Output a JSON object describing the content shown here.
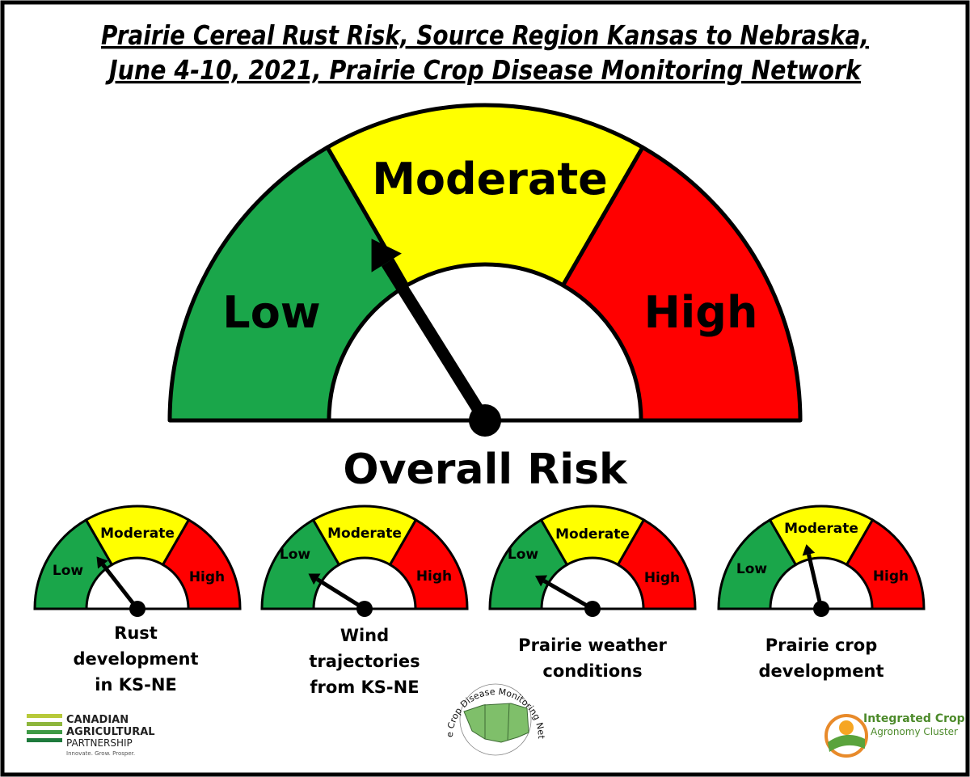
{
  "title": {
    "line1": "Prairie Cereal Rust Risk, Source Region Kansas to Nebraska,",
    "line2": "June 4-10, 2021, Prairie Crop Disease Monitoring Network"
  },
  "colors": {
    "low": "#1AA64A",
    "moderate": "#FFFF00",
    "high": "#FF0000",
    "needle": "#000000",
    "frame": "#000000"
  },
  "main_gauge": {
    "labels": {
      "low": "Low",
      "moderate": "Moderate",
      "high": "High"
    },
    "caption": "Overall Risk",
    "needle_angle_deg": 122
  },
  "small_gauges": [
    {
      "labels": {
        "low": "Low",
        "moderate": "Moderate",
        "high": "High"
      },
      "caption_lines": [
        "Rust",
        "development",
        "in KS-NE"
      ],
      "needle_angle_deg": 128
    },
    {
      "labels": {
        "low": "Low",
        "moderate": "Moderate",
        "high": "High"
      },
      "caption_lines": [
        "Wind",
        "trajectories",
        "from KS-NE"
      ],
      "needle_angle_deg": 148
    },
    {
      "labels": {
        "low": "Low",
        "moderate": "Moderate",
        "high": "High"
      },
      "caption_lines": [
        "Prairie weather",
        "conditions"
      ],
      "needle_angle_deg": 150
    },
    {
      "labels": {
        "low": "Low",
        "moderate": "Moderate",
        "high": "High"
      },
      "caption_lines": [
        "Prairie crop",
        "development"
      ],
      "needle_angle_deg": 103
    }
  ],
  "logos": {
    "cap": {
      "line1": "CANADIAN",
      "line2": "AGRICULTURAL",
      "line3": "PARTNERSHIP",
      "tagline": "Innovate. Grow. Prosper."
    },
    "pcdmn": {
      "ring_text": "Prairie Crop Disease Monitoring Network"
    },
    "icac": {
      "line1": "Integrated Crop",
      "line2": "Agronomy Cluster"
    }
  }
}
